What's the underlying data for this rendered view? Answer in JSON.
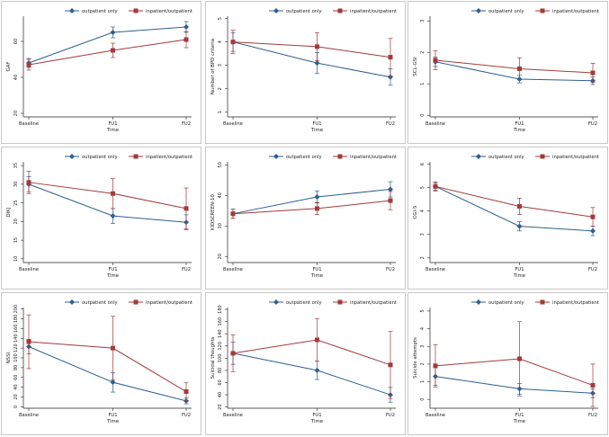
{
  "colors": {
    "outpatient": "#2e5f8f",
    "inpatient": "#a33a3a",
    "axis": "#222222",
    "frame": "#bbbbbb"
  },
  "chart_data": [
    {
      "type": "line",
      "ylabel": "GAF",
      "yticks": [
        20,
        40,
        60
      ],
      "ylim": [
        18,
        74
      ],
      "categories": [
        "Baseline",
        "FU1",
        "FU2"
      ],
      "xlabel": "Time",
      "legend": [
        "outpatient only",
        "inpatient/outpatient"
      ],
      "series": [
        {
          "name": "outpatient only",
          "values": [
            48,
            65,
            68
          ],
          "err": [
            2.5,
            3,
            3
          ]
        },
        {
          "name": "inpatient/outpatient",
          "values": [
            47,
            55,
            61
          ],
          "err": [
            3,
            4,
            4.5
          ]
        }
      ]
    },
    {
      "type": "line",
      "ylabel": "Number of BPD criteria",
      "yticks": [
        1,
        2,
        3,
        4,
        5
      ],
      "ylim": [
        0.8,
        5.1
      ],
      "categories": [
        "Baseline",
        "FU1",
        "FU2"
      ],
      "xlabel": "Time",
      "legend": [
        "outpatient only",
        "inpatient/outpatient"
      ],
      "series": [
        {
          "name": "outpatient only",
          "values": [
            4,
            3.1,
            2.5
          ],
          "err": [
            0.4,
            0.45,
            0.35
          ]
        },
        {
          "name": "inpatient/outpatient",
          "values": [
            4,
            3.8,
            3.35
          ],
          "err": [
            0.5,
            0.6,
            0.8
          ]
        }
      ]
    },
    {
      "type": "line",
      "ylabel": "SCL-GSI",
      "yticks": [
        0,
        1,
        2,
        3
      ],
      "ylim": [
        -0.05,
        3.15
      ],
      "categories": [
        "Baseline",
        "FU1",
        "FU2"
      ],
      "xlabel": "Time",
      "legend": [
        "outpatient only",
        "inpatient/outpatient"
      ],
      "series": [
        {
          "name": "outpatient only",
          "values": [
            1.7,
            1.15,
            1.1
          ],
          "err": [
            0.15,
            0.12,
            0.12
          ]
        },
        {
          "name": "inpatient/outpatient",
          "values": [
            1.75,
            1.48,
            1.35
          ],
          "err": [
            0.3,
            0.35,
            0.3
          ]
        }
      ]
    },
    {
      "type": "line",
      "ylabel": "DIKJ",
      "yticks": [
        10,
        15,
        20,
        25,
        30,
        35
      ],
      "ylim": [
        9,
        36
      ],
      "categories": [
        "Baseline",
        "FU1",
        "FU2"
      ],
      "xlabel": "Time",
      "legend": [
        "outpatient only",
        "inpatient/outpatient"
      ],
      "series": [
        {
          "name": "outpatient only",
          "values": [
            30,
            21.5,
            19.8
          ],
          "err": [
            2,
            2,
            2
          ]
        },
        {
          "name": "inpatient/outpatient",
          "values": [
            30.5,
            27.5,
            23.5
          ],
          "err": [
            3,
            4,
            5.5
          ]
        }
      ]
    },
    {
      "type": "line",
      "ylabel": "KIDSCREEN-10",
      "yticks": [
        20,
        30,
        40,
        50
      ],
      "ylim": [
        18,
        51
      ],
      "categories": [
        "Baseline",
        "FU1",
        "FU2"
      ],
      "xlabel": "Time",
      "legend": [
        "outpatient only",
        "inpatient/outpatient"
      ],
      "series": [
        {
          "name": "outpatient only",
          "values": [
            34,
            39.5,
            42
          ],
          "err": [
            1.5,
            2,
            2.5
          ]
        },
        {
          "name": "inpatient/outpatient",
          "values": [
            34,
            35.7,
            38.3
          ],
          "err": [
            1.5,
            2,
            3
          ]
        }
      ]
    },
    {
      "type": "line",
      "ylabel": "CGI-S",
      "yticks": [
        2,
        3,
        4,
        5,
        6
      ],
      "ylim": [
        1.8,
        6.1
      ],
      "categories": [
        "Baseline",
        "FU1",
        "FU2"
      ],
      "xlabel": "Time",
      "legend": [
        "outpatient only",
        "inpatient/outpatient"
      ],
      "series": [
        {
          "name": "outpatient only",
          "values": [
            5.05,
            3.35,
            3.15
          ],
          "err": [
            0.15,
            0.2,
            0.2
          ]
        },
        {
          "name": "inpatient/outpatient",
          "values": [
            5.05,
            4.2,
            3.75
          ],
          "err": [
            0.2,
            0.35,
            0.4
          ]
        }
      ]
    },
    {
      "type": "line",
      "ylabel": "NSSI",
      "yticks": [
        0,
        20,
        40,
        60,
        80,
        100,
        120,
        140,
        160,
        180,
        200
      ],
      "ylim": [
        -3,
        203
      ],
      "categories": [
        "Baseline",
        "FU1",
        "FU2"
      ],
      "xlabel": "Time",
      "legend": [
        "outpatient only",
        "inpatient/outpatient"
      ],
      "series": [
        {
          "name": "outpatient only",
          "values": [
            123,
            50,
            12
          ],
          "err": [
            15,
            20,
            6
          ]
        },
        {
          "name": "inpatient/outpatient",
          "values": [
            133,
            120,
            31
          ],
          "err": [
            55,
            65,
            18
          ]
        }
      ]
    },
    {
      "type": "line",
      "ylabel": "Suicidal thoughts",
      "yticks": [
        20,
        40,
        60,
        80,
        100,
        120,
        140,
        160,
        180
      ],
      "ylim": [
        18,
        183
      ],
      "categories": [
        "Baseline",
        "FU1",
        "FU2"
      ],
      "xlabel": "Time",
      "legend": [
        "outpatient only",
        "inpatient/outpatient"
      ],
      "series": [
        {
          "name": "outpatient only",
          "values": [
            108,
            80,
            40
          ],
          "err": [
            18,
            15,
            12
          ]
        },
        {
          "name": "inpatient/outpatient",
          "values": [
            108,
            130,
            89
          ],
          "err": [
            30,
            35,
            55
          ]
        }
      ]
    },
    {
      "type": "line",
      "ylabel": "Suicide attempts",
      "yticks": [
        0,
        1,
        2,
        3,
        4,
        5
      ],
      "ylim": [
        -0.5,
        5.2
      ],
      "categories": [
        "Baseline",
        "FU1",
        "FU2"
      ],
      "xlabel": "Time",
      "legend": [
        "outpatient only",
        "inpatient/outpatient"
      ],
      "series": [
        {
          "name": "outpatient only",
          "values": [
            1.3,
            0.6,
            0.35
          ],
          "err": [
            0.5,
            0.3,
            0.25
          ]
        },
        {
          "name": "inpatient/outpatient",
          "values": [
            1.9,
            2.3,
            0.8
          ],
          "err": [
            1.2,
            2.1,
            1.2
          ]
        }
      ]
    }
  ]
}
